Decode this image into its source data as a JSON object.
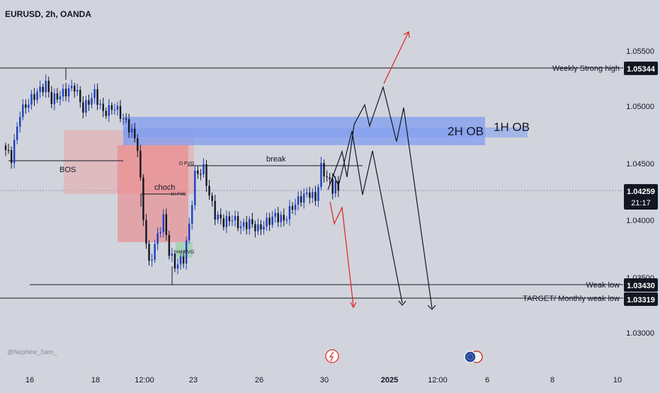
{
  "title": "EURUSD, 2h, OANDA",
  "watermark": "@Nephew_Sam_",
  "colors": {
    "background": "#d1d4dc",
    "candle_up": "#1f3fbf",
    "candle_down": "#131722",
    "zone_red": "#f08a8a",
    "zone_blue": "#7f9cf0",
    "fvg_green": "#9fcfb0",
    "arrow_red": "#e02020",
    "label_box": "#131722"
  },
  "axis": {
    "y_ticks": [
      "1.05500",
      "1.05000",
      "1.04500",
      "1.04000",
      "1.03500",
      "1.03000"
    ],
    "x_ticks": [
      "16",
      "18",
      "12:00",
      "23",
      "26",
      "30",
      "2025",
      "12:00",
      "6",
      "8",
      "10"
    ]
  },
  "levels": {
    "strong_high": {
      "label": "Weekly Strong high",
      "value": "1.05344"
    },
    "weak_low": {
      "label": "Weak low",
      "value": "1.03430"
    },
    "target": {
      "label": "TARGET/ Monthly weak low",
      "value": "1.03319"
    },
    "current": {
      "value": "1.04259",
      "countdown": "21:17"
    }
  },
  "annotations": {
    "bos": "BOS",
    "choch": "choch",
    "break": "break",
    "ob_2h": "2H OB",
    "ob_1h": "1H OB",
    "d_fvg": "D FVG",
    "h4_fvg": "H4 FVG",
    "small_fvg": "1H FVG"
  },
  "chart_data": {
    "type": "candlestick",
    "symbol": "EURUSD",
    "timeframe": "2h",
    "source": "OANDA",
    "y_range": [
      1.0275,
      1.0595
    ],
    "anchors": [
      [
        0,
        1.0462
      ],
      [
        2,
        1.0455
      ],
      [
        5,
        1.0495
      ],
      [
        10,
        1.051
      ],
      [
        14,
        1.052
      ],
      [
        16,
        1.0506
      ],
      [
        20,
        1.0512
      ],
      [
        24,
        1.0518
      ],
      [
        27,
        1.0498
      ],
      [
        31,
        1.0512
      ],
      [
        34,
        1.0495
      ],
      [
        38,
        1.05
      ],
      [
        42,
        1.0486
      ],
      [
        44,
        1.0478
      ],
      [
        46,
        1.0465
      ],
      [
        48,
        1.0402
      ],
      [
        50,
        1.036
      ],
      [
        52,
        1.0378
      ],
      [
        55,
        1.0402
      ],
      [
        57,
        1.0372
      ],
      [
        59,
        1.036
      ],
      [
        62,
        1.0366
      ],
      [
        64,
        1.0395
      ],
      [
        66,
        1.044
      ],
      [
        69,
        1.0445
      ],
      [
        71,
        1.0422
      ],
      [
        73,
        1.0405
      ],
      [
        76,
        1.0398
      ],
      [
        79,
        1.0402
      ],
      [
        82,
        1.0394
      ],
      [
        85,
        1.0398
      ],
      [
        88,
        1.0392
      ],
      [
        91,
        1.0398
      ],
      [
        94,
        1.0404
      ],
      [
        97,
        1.04
      ],
      [
        100,
        1.0412
      ],
      [
        103,
        1.042
      ],
      [
        106,
        1.0424
      ],
      [
        108,
        1.0418
      ],
      [
        110,
        1.0446
      ],
      [
        112,
        1.0438
      ],
      [
        114,
        1.0428
      ],
      [
        115,
        1.0432
      ],
      [
        116,
        1.0426
      ]
    ],
    "projection_path_1": [
      [
        1.0426,
        1.047,
        1.043,
        1.0485,
        1.0472,
        1.052,
        1.049,
        1.0515,
        1.0465,
        1.0332
      ]
    ],
    "projection_path_2": [
      [
        1.045,
        1.042,
        1.0493,
        1.0462,
        1.051,
        1.0472,
        1.05,
        1.0325
      ]
    ]
  }
}
